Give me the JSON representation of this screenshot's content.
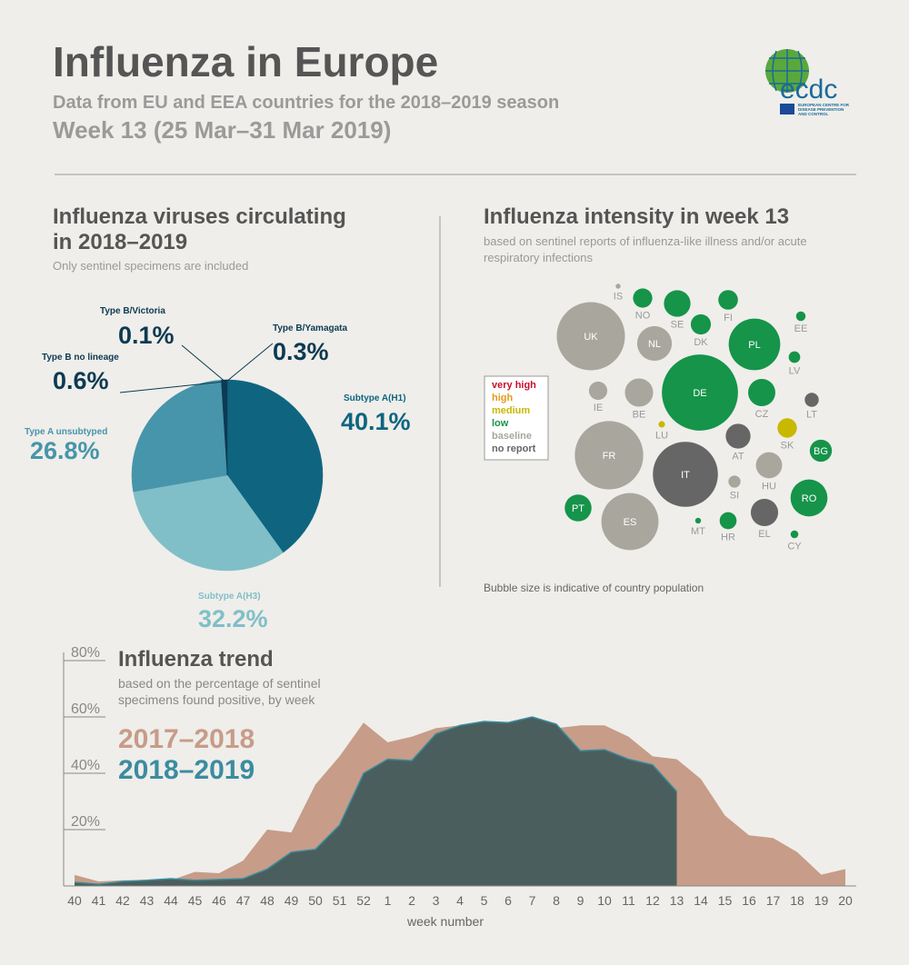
{
  "header": {
    "title": "Influenza in Europe",
    "subtitle": "Data from EU and EEA countries for the 2018–2019 season",
    "week": "Week 13 (25 Mar–31 Mar 2019)",
    "logo": {
      "name": "ecdc",
      "lines": [
        "EUROPEAN CENTRE FOR",
        "DISEASE PREVENTION",
        "AND CONTROL"
      ]
    }
  },
  "chart_data": [
    {
      "type": "pie",
      "title": [
        "Influenza viruses circulating",
        "in 2018–2019"
      ],
      "subtitle": "Only sentinel specimens are included",
      "categories": [
        "Subtype A(H1)",
        "Subtype A(H3)",
        "Type A unsubtyped",
        "Type B no lineage",
        "Type B/Victoria",
        "Type B/Yamagata"
      ],
      "values": [
        40.1,
        32.2,
        26.8,
        0.6,
        0.1,
        0.3
      ],
      "value_labels": [
        "40.1%",
        "32.2%",
        "26.8%",
        "0.6%",
        "0.1%",
        "0.3%"
      ],
      "colors": [
        "#0f6580",
        "#80bfc8",
        "#4795aa",
        "#0d3a52",
        "#0d3a52",
        "#0d3a52"
      ]
    },
    {
      "type": "bubble",
      "title": "Influenza intensity in week 13",
      "subtitle": [
        "based on sentinel reports of influenza-like illness and/or acute",
        "respiratory infections"
      ],
      "note": "Bubble size is indicative of country population",
      "legend": [
        {
          "name": "very high",
          "color": "#c8102e"
        },
        {
          "name": "high",
          "color": "#e39a1c"
        },
        {
          "name": "medium",
          "color": "#c9b800"
        },
        {
          "name": "low",
          "color": "#15944a"
        },
        {
          "name": "baseline",
          "color": "#a9a69d"
        },
        {
          "name": "no report",
          "color": "#666666"
        }
      ],
      "categories": [
        "IS",
        "NO",
        "SE",
        "FI",
        "DK",
        "EE",
        "UK",
        "NL",
        "PL",
        "LV",
        "DE",
        "IE",
        "BE",
        "CZ",
        "LT",
        "LU",
        "SK",
        "AT",
        "FR",
        "IT",
        "BG",
        "HU",
        "SI",
        "RO",
        "PT",
        "ES",
        "MT",
        "HR",
        "EL",
        "CY"
      ],
      "values": [
        0.35,
        5.3,
        10.1,
        5.5,
        5.8,
        1.3,
        66.5,
        17.2,
        38,
        1.9,
        82.8,
        4.8,
        11.4,
        10.6,
        2.8,
        0.6,
        5.4,
        8.8,
        67,
        60.5,
        7,
        9.8,
        2.1,
        19.5,
        10.3,
        46.7,
        0.48,
        4.1,
        10.7,
        0.86
      ],
      "levels": [
        "baseline",
        "low",
        "low",
        "low",
        "low",
        "low",
        "baseline",
        "baseline",
        "low",
        "low",
        "low",
        "baseline",
        "baseline",
        "low",
        "no report",
        "medium",
        "medium",
        "no report",
        "baseline",
        "no report",
        "low",
        "baseline",
        "baseline",
        "low",
        "low",
        "baseline",
        "low",
        "low",
        "no report",
        "low"
      ]
    },
    {
      "type": "area",
      "title": "Influenza trend",
      "subtitle": [
        "based on the percentage of sentinel",
        "specimens found positive, by week"
      ],
      "x_label": "week number",
      "categories": [
        "40",
        "41",
        "42",
        "43",
        "44",
        "45",
        "46",
        "47",
        "48",
        "49",
        "50",
        "51",
        "52",
        "1",
        "2",
        "3",
        "4",
        "5",
        "6",
        "7",
        "8",
        "9",
        "10",
        "11",
        "12",
        "13",
        "14",
        "15",
        "16",
        "17",
        "18",
        "19",
        "20"
      ],
      "series": [
        {
          "name": "2017–2018",
          "color": "#c79c88",
          "values": [
            3.9,
            1.6,
            2,
            2,
            2,
            5,
            4.5,
            9,
            20,
            19,
            36,
            46,
            58,
            51,
            53,
            56,
            57,
            58,
            58,
            59,
            56,
            57,
            57,
            53,
            46,
            45,
            38,
            25,
            18,
            17,
            12,
            4,
            6
          ]
        },
        {
          "name": "2018–2019",
          "color": "#4a5f5d",
          "line_color": "#3b8ca0",
          "values": [
            1.3,
            0.6,
            1.6,
            2,
            2.6,
            2,
            2.3,
            2.6,
            6,
            12,
            13,
            21.6,
            40,
            45,
            44.5,
            54,
            57,
            58.4,
            58,
            60,
            57.4,
            48,
            48.4,
            45,
            43,
            33.5,
            null,
            null,
            null,
            null,
            null,
            null,
            null
          ]
        }
      ],
      "ylim": [
        0,
        80
      ],
      "yticks": [
        {
          "value": 20,
          "label": "20%"
        },
        {
          "value": 40,
          "label": "40%"
        },
        {
          "value": 60,
          "label": "60%"
        },
        {
          "value": 80,
          "label": "80%"
        }
      ]
    }
  ]
}
